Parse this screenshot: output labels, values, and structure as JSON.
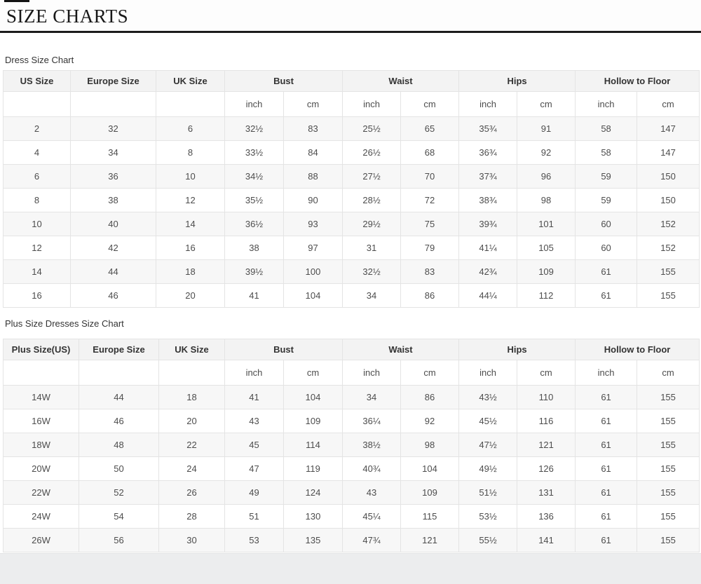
{
  "page": {
    "title": "SIZE CHARTS"
  },
  "tables": [
    {
      "label": "Dress Size Chart",
      "columns": [
        "US Size",
        "Europe Size",
        "UK Size"
      ],
      "groups": [
        "Bust",
        "Waist",
        "Hips",
        "Hollow to Floor"
      ],
      "unit_headers": [
        "inch",
        "cm"
      ],
      "rows": [
        [
          "2",
          "32",
          "6",
          "32½",
          "83",
          "25½",
          "65",
          "35¾",
          "91",
          "58",
          "147"
        ],
        [
          "4",
          "34",
          "8",
          "33½",
          "84",
          "26½",
          "68",
          "36¾",
          "92",
          "58",
          "147"
        ],
        [
          "6",
          "36",
          "10",
          "34½",
          "88",
          "27½",
          "70",
          "37¾",
          "96",
          "59",
          "150"
        ],
        [
          "8",
          "38",
          "12",
          "35½",
          "90",
          "28½",
          "72",
          "38¾",
          "98",
          "59",
          "150"
        ],
        [
          "10",
          "40",
          "14",
          "36½",
          "93",
          "29½",
          "75",
          "39¾",
          "101",
          "60",
          "152"
        ],
        [
          "12",
          "42",
          "16",
          "38",
          "97",
          "31",
          "79",
          "41¼",
          "105",
          "60",
          "152"
        ],
        [
          "14",
          "44",
          "18",
          "39½",
          "100",
          "32½",
          "83",
          "42¾",
          "109",
          "61",
          "155"
        ],
        [
          "16",
          "46",
          "20",
          "41",
          "104",
          "34",
          "86",
          "44¼",
          "112",
          "61",
          "155"
        ]
      ]
    },
    {
      "label": "Plus Size Dresses Size Chart",
      "columns": [
        "Plus Size(US)",
        "Europe Size",
        "UK Size"
      ],
      "groups": [
        "Bust",
        "Waist",
        "Hips",
        "Hollow to Floor"
      ],
      "unit_headers": [
        "inch",
        "cm"
      ],
      "rows": [
        [
          "14W",
          "44",
          "18",
          "41",
          "104",
          "34",
          "86",
          "43½",
          "110",
          "61",
          "155"
        ],
        [
          "16W",
          "46",
          "20",
          "43",
          "109",
          "36¼",
          "92",
          "45½",
          "116",
          "61",
          "155"
        ],
        [
          "18W",
          "48",
          "22",
          "45",
          "114",
          "38½",
          "98",
          "47½",
          "121",
          "61",
          "155"
        ],
        [
          "20W",
          "50",
          "24",
          "47",
          "119",
          "40¾",
          "104",
          "49½",
          "126",
          "61",
          "155"
        ],
        [
          "22W",
          "52",
          "26",
          "49",
          "124",
          "43",
          "109",
          "51½",
          "131",
          "61",
          "155"
        ],
        [
          "24W",
          "54",
          "28",
          "51",
          "130",
          "45¼",
          "115",
          "53½",
          "136",
          "61",
          "155"
        ],
        [
          "26W",
          "56",
          "30",
          "53",
          "135",
          "47¾",
          "121",
          "55½",
          "141",
          "61",
          "155"
        ]
      ]
    }
  ]
}
